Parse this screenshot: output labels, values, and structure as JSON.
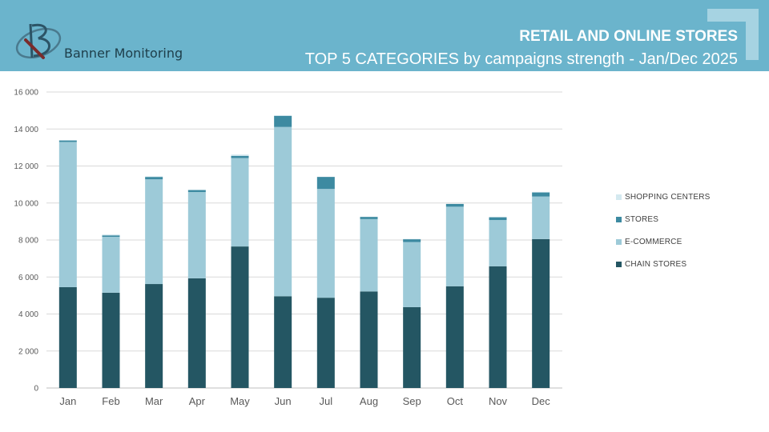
{
  "header": {
    "brand": "Banner Monitoring",
    "title": "RETAIL AND ONLINE STORES",
    "subtitle": "TOP 5 CATEGORIES by campaigns strength - Jan/Dec 2025"
  },
  "colors": {
    "banner": "#6bb4cc",
    "chain_stores": "#245663",
    "e_commerce": "#9dcad8",
    "stores": "#3d8aa1",
    "shopping_centers": "#d4e9f0"
  },
  "icons": {
    "logo": "b-logo-icon",
    "corner": "corner-bracket-icon"
  },
  "chart_data": {
    "type": "bar",
    "stacked": true,
    "categories": [
      "Jan",
      "Feb",
      "Mar",
      "Apr",
      "May",
      "Jun",
      "Jul",
      "Aug",
      "Sep",
      "Oct",
      "Nov",
      "Dec"
    ],
    "series": [
      {
        "name": "CHAIN STORES",
        "color": "#245663",
        "values": [
          5450,
          5150,
          5620,
          5930,
          7650,
          4960,
          4880,
          5220,
          4370,
          5500,
          6580,
          8050
        ]
      },
      {
        "name": "E-COMMERCE",
        "color": "#9dcad8",
        "values": [
          7850,
          3020,
          5660,
          4660,
          4780,
          9150,
          5880,
          3910,
          3520,
          4300,
          2500,
          2300
        ]
      },
      {
        "name": "STORES",
        "color": "#3d8aa1",
        "values": [
          80,
          80,
          130,
          110,
          120,
          600,
          650,
          120,
          150,
          150,
          150,
          220
        ]
      },
      {
        "name": "SHOPPING CENTERS",
        "color": "#d4e9f0",
        "values": [
          20,
          50,
          30,
          20,
          70,
          40,
          0,
          10,
          20,
          0,
          0,
          30
        ]
      }
    ],
    "yticks": [
      "0",
      "2 000",
      "4 000",
      "6 000",
      "8 000",
      "10 000",
      "12 000",
      "14 000",
      "16 000"
    ],
    "ylim": [
      0,
      16000
    ],
    "grid": true,
    "legend_position": "right"
  },
  "legend": [
    {
      "label": "SHOPPING CENTERS",
      "color": "#d4e9f0"
    },
    {
      "label": "STORES",
      "color": "#3d8aa1"
    },
    {
      "label": "E-COMMERCE",
      "color": "#9dcad8"
    },
    {
      "label": "CHAIN STORES",
      "color": "#245663"
    }
  ]
}
